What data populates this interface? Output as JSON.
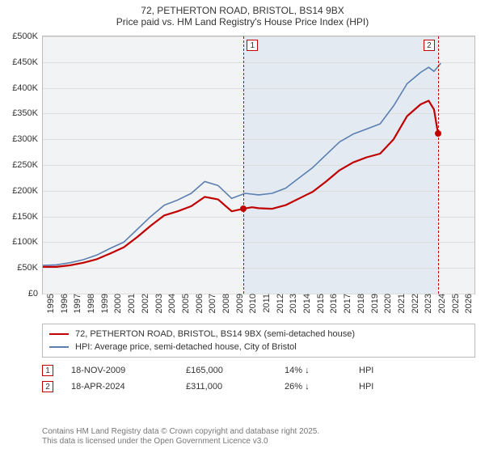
{
  "title": {
    "line1": "72, PETHERTON ROAD, BRISTOL, BS14 9BX",
    "line2": "Price paid vs. HM Land Registry's House Price Index (HPI)"
  },
  "chart": {
    "type": "line",
    "background_color": "#f2f3f4",
    "grid_color": "#dddddd",
    "x": {
      "min": 1995,
      "max": 2027,
      "ticks": [
        1995,
        1996,
        1997,
        1998,
        1999,
        2000,
        2001,
        2002,
        2003,
        2004,
        2005,
        2006,
        2007,
        2008,
        2009,
        2010,
        2011,
        2012,
        2013,
        2014,
        2015,
        2016,
        2017,
        2018,
        2019,
        2020,
        2021,
        2022,
        2023,
        2024,
        2025,
        2026
      ],
      "tick_fontsize": 11
    },
    "y": {
      "min": 0,
      "max": 500000,
      "ticks": [
        0,
        50000,
        100000,
        150000,
        200000,
        250000,
        300000,
        350000,
        400000,
        450000,
        500000
      ],
      "tick_labels": [
        "£0",
        "£50K",
        "£100K",
        "£150K",
        "£200K",
        "£250K",
        "£300K",
        "£350K",
        "£400K",
        "£450K",
        "£500K"
      ],
      "tick_fontsize": 11
    },
    "zoom_band": {
      "from": 2009.9,
      "to": 2024.3,
      "color": "#e3eaf2"
    },
    "series": [
      {
        "id": "subject_property",
        "label": "72, PETHERTON ROAD, BRISTOL, BS14 9BX (semi-detached house)",
        "color": "#c00000",
        "line_width": 2.2,
        "points": [
          [
            1995,
            52000
          ],
          [
            1996,
            52000
          ],
          [
            1997,
            55000
          ],
          [
            1998,
            60000
          ],
          [
            1999,
            67000
          ],
          [
            2000,
            78000
          ],
          [
            2001,
            90000
          ],
          [
            2002,
            110000
          ],
          [
            2003,
            132000
          ],
          [
            2004,
            152000
          ],
          [
            2005,
            160000
          ],
          [
            2006,
            170000
          ],
          [
            2007,
            188000
          ],
          [
            2008,
            183000
          ],
          [
            2009,
            160000
          ],
          [
            2009.88,
            165000
          ],
          [
            2010.5,
            168000
          ],
          [
            2011,
            166000
          ],
          [
            2012,
            165000
          ],
          [
            2013,
            172000
          ],
          [
            2014,
            185000
          ],
          [
            2015,
            198000
          ],
          [
            2016,
            218000
          ],
          [
            2017,
            240000
          ],
          [
            2018,
            255000
          ],
          [
            2019,
            265000
          ],
          [
            2020,
            272000
          ],
          [
            2021,
            300000
          ],
          [
            2022,
            345000
          ],
          [
            2023,
            368000
          ],
          [
            2023.6,
            375000
          ],
          [
            2024.0,
            358000
          ],
          [
            2024.3,
            311000
          ]
        ]
      },
      {
        "id": "hpi",
        "label": "HPI: Average price, semi-detached house, City of Bristol",
        "color": "#5b7fb0",
        "line_width": 1.6,
        "points": [
          [
            1995,
            55000
          ],
          [
            1996,
            56000
          ],
          [
            1997,
            60000
          ],
          [
            1998,
            66000
          ],
          [
            1999,
            75000
          ],
          [
            2000,
            88000
          ],
          [
            2001,
            100000
          ],
          [
            2002,
            125000
          ],
          [
            2003,
            150000
          ],
          [
            2004,
            172000
          ],
          [
            2005,
            182000
          ],
          [
            2006,
            195000
          ],
          [
            2007,
            218000
          ],
          [
            2008,
            210000
          ],
          [
            2009,
            185000
          ],
          [
            2010,
            195000
          ],
          [
            2011,
            192000
          ],
          [
            2012,
            195000
          ],
          [
            2013,
            205000
          ],
          [
            2014,
            225000
          ],
          [
            2015,
            245000
          ],
          [
            2016,
            270000
          ],
          [
            2017,
            295000
          ],
          [
            2018,
            310000
          ],
          [
            2019,
            320000
          ],
          [
            2020,
            330000
          ],
          [
            2021,
            365000
          ],
          [
            2022,
            408000
          ],
          [
            2023,
            430000
          ],
          [
            2023.6,
            440000
          ],
          [
            2024.0,
            432000
          ],
          [
            2024.5,
            448000
          ]
        ]
      }
    ],
    "markers": [
      {
        "n": "1",
        "x": 2009.88,
        "color": "#c00000",
        "dot_y": 165000
      },
      {
        "n": "2",
        "x": 2024.3,
        "color": "#c00000",
        "dot_y": 311000
      }
    ]
  },
  "legend": {
    "items": [
      {
        "color": "#c00000",
        "width": 2.5,
        "text": "72, PETHERTON ROAD, BRISTOL, BS14 9BX (semi-detached house)"
      },
      {
        "color": "#5b7fb0",
        "width": 1.6,
        "text": "HPI: Average price, semi-detached house, City of Bristol"
      }
    ]
  },
  "events": [
    {
      "n": "1",
      "date": "18-NOV-2009",
      "price": "£165,000",
      "delta": "14%",
      "direction": "down",
      "vs": "HPI"
    },
    {
      "n": "2",
      "date": "18-APR-2024",
      "price": "£311,000",
      "delta": "26%",
      "direction": "down",
      "vs": "HPI"
    }
  ],
  "footnote": {
    "line1": "Contains HM Land Registry data © Crown copyright and database right 2025.",
    "line2": "This data is licensed under the Open Government Licence v3.0"
  }
}
